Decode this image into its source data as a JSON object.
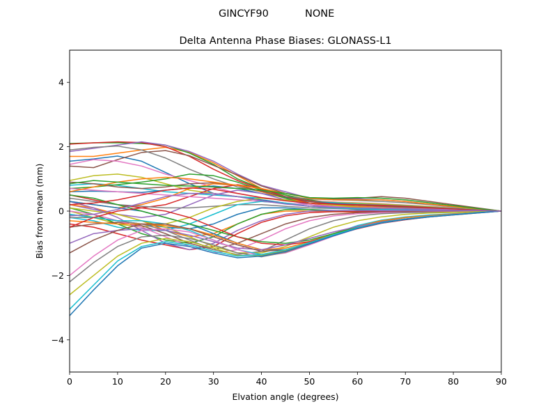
{
  "figure": {
    "suptitle_left": "GINCYF90",
    "suptitle_right": "NONE"
  },
  "chart_data": {
    "type": "line",
    "title": "Delta Antenna Phase Biases: GLONASS-L1",
    "xlabel": "Elvation angle (degrees)",
    "ylabel": "Bias from mean (mm)",
    "xlim": [
      0,
      90
    ],
    "ylim": [
      -5,
      5
    ],
    "xticks": [
      0,
      10,
      20,
      30,
      40,
      50,
      60,
      70,
      80,
      90
    ],
    "yticks": [
      -4,
      -2,
      0,
      2,
      4
    ],
    "grid": false,
    "legend": "none",
    "x": [
      0,
      5,
      10,
      15,
      20,
      25,
      30,
      35,
      40,
      45,
      50,
      55,
      60,
      65,
      70,
      75,
      80,
      85,
      90
    ],
    "series": [
      {
        "values": [
          1.55,
          1.62,
          1.71,
          1.55,
          1.2,
          0.85,
          0.55,
          0.45,
          0.35,
          0.25,
          0.15,
          0.1,
          0.08,
          0.06,
          0.05,
          0.04,
          0.03,
          0.02,
          0.0
        ]
      },
      {
        "values": [
          1.7,
          1.7,
          1.8,
          1.9,
          1.98,
          1.82,
          1.5,
          1.1,
          0.7,
          0.5,
          0.3,
          0.2,
          0.15,
          0.12,
          0.1,
          0.08,
          0.05,
          0.03,
          0.0
        ]
      },
      {
        "values": [
          2.1,
          2.12,
          2.12,
          2.1,
          2.05,
          1.8,
          1.45,
          1.0,
          0.7,
          0.5,
          0.35,
          0.25,
          0.2,
          0.15,
          0.12,
          0.1,
          0.07,
          0.04,
          0.0
        ]
      },
      {
        "values": [
          2.08,
          2.12,
          2.15,
          2.13,
          2.0,
          1.7,
          1.3,
          0.95,
          0.68,
          0.45,
          0.32,
          0.28,
          0.25,
          0.22,
          0.18,
          0.14,
          0.1,
          0.05,
          0.0
        ]
      },
      {
        "values": [
          1.85,
          1.95,
          2.05,
          2.15,
          2.05,
          1.85,
          1.55,
          1.15,
          0.8,
          0.6,
          0.4,
          0.35,
          0.38,
          0.35,
          0.3,
          0.22,
          0.14,
          0.07,
          0.0
        ]
      },
      {
        "values": [
          1.4,
          1.35,
          1.6,
          1.82,
          1.88,
          1.72,
          1.42,
          1.12,
          0.78,
          0.55,
          0.42,
          0.38,
          0.4,
          0.45,
          0.4,
          0.3,
          0.2,
          0.1,
          0.0
        ]
      },
      {
        "values": [
          1.45,
          1.6,
          1.55,
          1.4,
          1.15,
          0.95,
          0.75,
          0.55,
          0.42,
          0.35,
          0.3,
          0.28,
          0.26,
          0.23,
          0.19,
          0.15,
          0.1,
          0.05,
          0.0
        ]
      },
      {
        "values": [
          1.9,
          1.98,
          2.02,
          1.9,
          1.65,
          1.3,
          1.0,
          0.75,
          0.6,
          0.45,
          0.38,
          0.35,
          0.33,
          0.3,
          0.26,
          0.2,
          0.13,
          0.06,
          0.0
        ]
      },
      {
        "values": [
          0.95,
          1.1,
          1.15,
          1.05,
          0.85,
          0.65,
          0.55,
          0.45,
          0.4,
          0.35,
          0.3,
          0.27,
          0.25,
          0.22,
          0.18,
          0.14,
          0.09,
          0.05,
          0.0
        ]
      },
      {
        "values": [
          0.8,
          0.85,
          0.8,
          0.7,
          0.6,
          0.55,
          0.5,
          0.45,
          0.4,
          0.35,
          0.3,
          0.26,
          0.22,
          0.19,
          0.16,
          0.12,
          0.08,
          0.04,
          0.0
        ]
      },
      {
        "values": [
          0.6,
          0.62,
          0.6,
          0.58,
          0.65,
          0.72,
          0.78,
          0.7,
          0.55,
          0.42,
          0.3,
          0.24,
          0.2,
          0.17,
          0.14,
          0.1,
          0.07,
          0.03,
          0.0
        ]
      },
      {
        "values": [
          0.3,
          0.2,
          0.1,
          0.2,
          0.4,
          0.7,
          0.85,
          0.8,
          0.6,
          0.4,
          0.25,
          0.18,
          0.12,
          0.08,
          0.06,
          0.04,
          0.03,
          0.02,
          0.0
        ]
      },
      {
        "values": [
          0.7,
          0.75,
          0.82,
          0.9,
          1.0,
          1.15,
          1.1,
          0.9,
          0.65,
          0.4,
          0.2,
          0.1,
          0.05,
          0.03,
          0.02,
          0.02,
          0.01,
          0.01,
          0.0
        ]
      },
      {
        "values": [
          0.5,
          0.35,
          0.2,
          0.1,
          0.2,
          0.45,
          0.7,
          0.82,
          0.7,
          0.45,
          0.25,
          0.15,
          0.1,
          0.07,
          0.05,
          0.03,
          0.02,
          0.01,
          0.0
        ]
      },
      {
        "values": [
          0.2,
          0.05,
          -0.1,
          -0.2,
          -0.1,
          0.2,
          0.5,
          0.65,
          0.55,
          0.35,
          0.2,
          0.12,
          0.08,
          0.05,
          0.04,
          0.03,
          0.02,
          0.01,
          0.0
        ]
      },
      {
        "values": [
          0.9,
          0.85,
          0.75,
          0.7,
          0.75,
          0.85,
          0.88,
          0.8,
          0.62,
          0.45,
          0.3,
          0.22,
          0.18,
          0.15,
          0.12,
          0.09,
          0.06,
          0.03,
          0.0
        ]
      },
      {
        "values": [
          0.7,
          0.65,
          0.6,
          0.55,
          0.5,
          0.45,
          0.4,
          0.35,
          0.3,
          0.25,
          0.2,
          0.15,
          0.12,
          0.1,
          0.08,
          0.06,
          0.04,
          0.02,
          0.0
        ]
      },
      {
        "values": [
          0.4,
          0.3,
          0.2,
          0.15,
          0.1,
          0.1,
          0.15,
          0.2,
          0.2,
          0.15,
          0.1,
          0.08,
          0.06,
          0.05,
          0.04,
          0.03,
          0.02,
          0.01,
          0.0
        ]
      },
      {
        "values": [
          0.0,
          -0.2,
          -0.4,
          -0.5,
          -0.4,
          -0.2,
          0.1,
          0.3,
          0.4,
          0.35,
          0.25,
          0.18,
          0.12,
          0.08,
          0.06,
          0.04,
          0.03,
          0.02,
          0.0
        ]
      },
      {
        "values": [
          -0.2,
          -0.3,
          -0.5,
          -0.6,
          -0.6,
          -0.4,
          -0.1,
          0.2,
          0.3,
          0.25,
          0.15,
          0.1,
          0.07,
          0.05,
          0.04,
          0.03,
          0.02,
          0.01,
          0.0
        ]
      },
      {
        "values": [
          -0.1,
          -0.2,
          -0.3,
          -0.4,
          -0.5,
          -0.55,
          -0.4,
          -0.1,
          0.1,
          0.1,
          0.05,
          0.02,
          0.0,
          -0.01,
          -0.01,
          -0.01,
          0.0,
          0.0,
          0.0
        ]
      },
      {
        "values": [
          0.2,
          0.1,
          -0.1,
          -0.3,
          -0.6,
          -0.8,
          -0.7,
          -0.4,
          -0.1,
          0.0,
          0.0,
          -0.02,
          -0.03,
          -0.03,
          -0.02,
          -0.02,
          -0.01,
          -0.01,
          0.0
        ]
      },
      {
        "values": [
          0.1,
          -0.1,
          -0.4,
          -0.7,
          -0.9,
          -1.0,
          -0.8,
          -0.4,
          -0.1,
          0.05,
          0.05,
          0.0,
          -0.02,
          -0.03,
          -0.03,
          -0.02,
          -0.02,
          -0.01,
          0.0
        ]
      },
      {
        "values": [
          -0.4,
          -0.5,
          -0.7,
          -0.9,
          -1.05,
          -1.2,
          -1.1,
          -0.7,
          -0.35,
          -0.15,
          -0.05,
          -0.02,
          -0.02,
          -0.02,
          -0.02,
          -0.02,
          -0.01,
          -0.01,
          0.0
        ]
      },
      {
        "values": [
          0.3,
          0.1,
          -0.2,
          -0.6,
          -1.0,
          -1.2,
          -1.0,
          -0.6,
          -0.3,
          -0.1,
          0.0,
          0.02,
          0.02,
          0.02,
          0.02,
          0.01,
          0.01,
          0.0,
          0.0
        ]
      },
      {
        "values": [
          -0.5,
          -0.4,
          -0.35,
          -0.45,
          -0.7,
          -1.0,
          -1.2,
          -1.0,
          -0.7,
          -0.4,
          -0.2,
          -0.1,
          -0.05,
          -0.03,
          -0.02,
          -0.02,
          -0.01,
          -0.01,
          0.0
        ]
      },
      {
        "values": [
          0.0,
          -0.1,
          -0.3,
          -0.5,
          -0.8,
          -1.1,
          -1.3,
          -1.2,
          -0.9,
          -0.55,
          -0.3,
          -0.15,
          -0.08,
          -0.05,
          -0.04,
          -0.03,
          -0.02,
          -0.01,
          0.0
        ]
      },
      {
        "values": [
          -0.2,
          -0.2,
          -0.3,
          -0.4,
          -0.6,
          -0.9,
          -1.2,
          -1.35,
          -1.25,
          -0.9,
          -0.55,
          -0.3,
          -0.15,
          -0.08,
          -0.05,
          -0.04,
          -0.03,
          -0.02,
          0.0
        ]
      },
      {
        "values": [
          0.1,
          0.0,
          -0.1,
          -0.3,
          -0.5,
          -0.8,
          -1.1,
          -1.3,
          -1.3,
          -1.1,
          -0.8,
          -0.5,
          -0.3,
          -0.18,
          -0.1,
          -0.06,
          -0.04,
          -0.02,
          0.0
        ]
      },
      {
        "values": [
          -0.1,
          -0.2,
          -0.3,
          -0.3,
          -0.4,
          -0.6,
          -0.9,
          -1.2,
          -1.35,
          -1.25,
          -1.0,
          -0.7,
          -0.45,
          -0.28,
          -0.18,
          -0.12,
          -0.08,
          -0.04,
          0.0
        ]
      },
      {
        "values": [
          0.3,
          0.2,
          0.1,
          0.0,
          -0.2,
          -0.4,
          -0.7,
          -1.0,
          -1.2,
          -1.2,
          -1.0,
          -0.75,
          -0.5,
          -0.32,
          -0.2,
          -0.14,
          -0.09,
          -0.04,
          0.0
        ]
      },
      {
        "values": [
          -0.3,
          -0.35,
          -0.4,
          -0.4,
          -0.45,
          -0.55,
          -0.75,
          -1.0,
          -1.2,
          -1.15,
          -0.95,
          -0.7,
          -0.48,
          -0.3,
          -0.2,
          -0.14,
          -0.09,
          -0.04,
          0.0
        ]
      },
      {
        "values": [
          0.5,
          0.4,
          0.2,
          0.0,
          -0.2,
          -0.4,
          -0.6,
          -0.8,
          -0.95,
          -1.0,
          -0.9,
          -0.7,
          -0.5,
          -0.35,
          -0.25,
          -0.17,
          -0.11,
          -0.05,
          0.0
        ]
      },
      {
        "values": [
          -0.5,
          -0.2,
          0.0,
          0.1,
          0.0,
          -0.2,
          -0.5,
          -0.8,
          -1.0,
          -1.05,
          -0.95,
          -0.75,
          -0.55,
          -0.38,
          -0.27,
          -0.18,
          -0.12,
          -0.06,
          0.0
        ]
      },
      {
        "values": [
          -1.0,
          -0.7,
          -0.6,
          -0.55,
          -0.6,
          -0.75,
          -0.95,
          -1.15,
          -1.2,
          -1.05,
          -0.85,
          -0.65,
          -0.48,
          -0.34,
          -0.24,
          -0.16,
          -0.1,
          -0.05,
          0.0
        ]
      },
      {
        "values": [
          -1.3,
          -0.9,
          -0.6,
          -0.4,
          -0.4,
          -0.55,
          -0.8,
          -1.05,
          -1.25,
          -1.2,
          -1.0,
          -0.75,
          -0.52,
          -0.36,
          -0.25,
          -0.17,
          -0.11,
          -0.05,
          0.0
        ]
      },
      {
        "values": [
          -2.0,
          -1.4,
          -0.9,
          -0.6,
          -0.55,
          -0.65,
          -0.9,
          -1.2,
          -1.4,
          -1.3,
          -1.05,
          -0.78,
          -0.54,
          -0.37,
          -0.26,
          -0.18,
          -0.11,
          -0.05,
          0.0
        ]
      },
      {
        "values": [
          -2.2,
          -1.6,
          -1.1,
          -0.8,
          -0.75,
          -0.85,
          -1.05,
          -1.3,
          -1.42,
          -1.28,
          -1.02,
          -0.76,
          -0.53,
          -0.36,
          -0.25,
          -0.17,
          -0.11,
          -0.05,
          0.0
        ]
      },
      {
        "values": [
          -2.6,
          -2.0,
          -1.4,
          -1.0,
          -0.85,
          -0.95,
          -1.15,
          -1.38,
          -1.38,
          -1.22,
          -0.98,
          -0.74,
          -0.52,
          -0.36,
          -0.25,
          -0.17,
          -0.11,
          -0.05,
          0.0
        ]
      },
      {
        "values": [
          -3.05,
          -2.3,
          -1.55,
          -1.1,
          -0.95,
          -1.05,
          -1.25,
          -1.4,
          -1.35,
          -1.2,
          -0.98,
          -0.74,
          -0.52,
          -0.36,
          -0.25,
          -0.17,
          -0.11,
          -0.05,
          0.0
        ]
      },
      {
        "values": [
          -3.25,
          -2.45,
          -1.7,
          -1.15,
          -1.0,
          -1.1,
          -1.3,
          -1.45,
          -1.4,
          -1.25,
          -1.02,
          -0.77,
          -0.54,
          -0.37,
          -0.26,
          -0.18,
          -0.12,
          -0.06,
          0.0
        ]
      },
      {
        "values": [
          0.6,
          0.75,
          0.9,
          1.0,
          1.05,
          1.0,
          0.9,
          0.8,
          0.7,
          0.55,
          0.4,
          0.35,
          0.35,
          0.35,
          0.3,
          0.22,
          0.14,
          0.07,
          0.0
        ]
      },
      {
        "values": [
          0.85,
          0.95,
          0.9,
          0.85,
          0.8,
          0.78,
          0.75,
          0.7,
          0.65,
          0.55,
          0.42,
          0.4,
          0.42,
          0.4,
          0.35,
          0.26,
          0.17,
          0.08,
          0.0
        ]
      },
      {
        "values": [
          0.2,
          0.25,
          0.35,
          0.5,
          0.65,
          0.72,
          0.68,
          0.55,
          0.42,
          0.32,
          0.25,
          0.22,
          0.2,
          0.18,
          0.15,
          0.11,
          0.07,
          0.03,
          0.0
        ]
      },
      {
        "values": [
          -0.15,
          -0.1,
          0.05,
          0.25,
          0.45,
          0.55,
          0.55,
          0.45,
          0.32,
          0.22,
          0.15,
          0.12,
          0.1,
          0.09,
          0.07,
          0.05,
          0.03,
          0.02,
          0.0
        ]
      }
    ]
  }
}
